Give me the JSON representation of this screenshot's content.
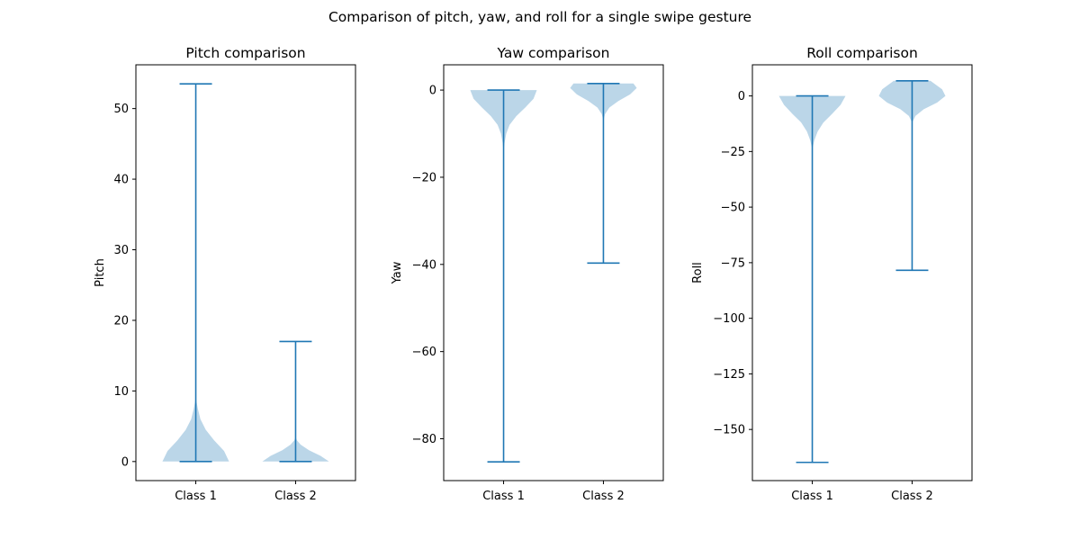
{
  "figure": {
    "suptitle": "Comparison of pitch, yaw, and roll for a single swipe gesture",
    "colors": {
      "line": "#1f77b4",
      "body": "#1f77b4",
      "axes": "#000000"
    }
  },
  "chart_data": [
    {
      "type": "violin",
      "title": "Pitch comparison",
      "xlabel": "",
      "ylabel": "Pitch",
      "categories": [
        "Class 1",
        "Class 2"
      ],
      "ylim": [
        -2.7,
        56.2
      ],
      "yticks": [
        0,
        10,
        20,
        30,
        40,
        50
      ],
      "series": [
        {
          "min": 0,
          "max": 53.5,
          "density": [
            [
              0,
              1.0
            ],
            [
              1.5,
              0.85
            ],
            [
              3,
              0.55
            ],
            [
              4.5,
              0.3
            ],
            [
              6,
              0.14
            ],
            [
              7.5,
              0.06
            ],
            [
              8.5,
              0.02
            ],
            [
              9.5,
              0.0
            ]
          ]
        },
        {
          "min": 0,
          "max": 17.0,
          "density": [
            [
              0,
              1.0
            ],
            [
              0.8,
              0.75
            ],
            [
              1.6,
              0.4
            ],
            [
              2.4,
              0.15
            ],
            [
              3.0,
              0.04
            ],
            [
              3.5,
              0.0
            ]
          ]
        }
      ]
    },
    {
      "type": "violin",
      "title": "Yaw comparison",
      "xlabel": "",
      "ylabel": "Yaw",
      "categories": [
        "Class 1",
        "Class 2"
      ],
      "ylim": [
        -89.6,
        5.8
      ],
      "yticks": [
        -80,
        -60,
        -40,
        -20,
        0
      ],
      "series": [
        {
          "min": -85.3,
          "max": 0,
          "density": [
            [
              0,
              1.0
            ],
            [
              -2,
              0.9
            ],
            [
              -4,
              0.65
            ],
            [
              -6,
              0.38
            ],
            [
              -8,
              0.18
            ],
            [
              -10,
              0.08
            ],
            [
              -12,
              0.03
            ],
            [
              -14,
              0.0
            ]
          ]
        },
        {
          "min": -39.7,
          "max": 1.5,
          "density": [
            [
              1.5,
              0.9
            ],
            [
              0.5,
              1.0
            ],
            [
              -1,
              0.8
            ],
            [
              -2.5,
              0.45
            ],
            [
              -4,
              0.18
            ],
            [
              -5.5,
              0.05
            ],
            [
              -7,
              0.0
            ]
          ]
        }
      ]
    },
    {
      "type": "violin",
      "title": "Roll comparison",
      "xlabel": "",
      "ylabel": "Roll",
      "categories": [
        "Class 1",
        "Class 2"
      ],
      "ylim": [
        -173.0,
        14.0
      ],
      "yticks": [
        -150,
        -125,
        -100,
        -75,
        -50,
        -25,
        0
      ],
      "series": [
        {
          "min": -164.8,
          "max": 0,
          "density": [
            [
              0,
              1.0
            ],
            [
              -4,
              0.85
            ],
            [
              -8,
              0.6
            ],
            [
              -12,
              0.33
            ],
            [
              -16,
              0.16
            ],
            [
              -20,
              0.06
            ],
            [
              -24,
              0.0
            ]
          ]
        },
        {
          "min": -78.4,
          "max": 6.8,
          "density": [
            [
              6.8,
              0.55
            ],
            [
              3,
              0.9
            ],
            [
              0,
              1.0
            ],
            [
              -3,
              0.75
            ],
            [
              -6,
              0.35
            ],
            [
              -9,
              0.1
            ],
            [
              -12,
              0.0
            ]
          ]
        }
      ]
    }
  ]
}
